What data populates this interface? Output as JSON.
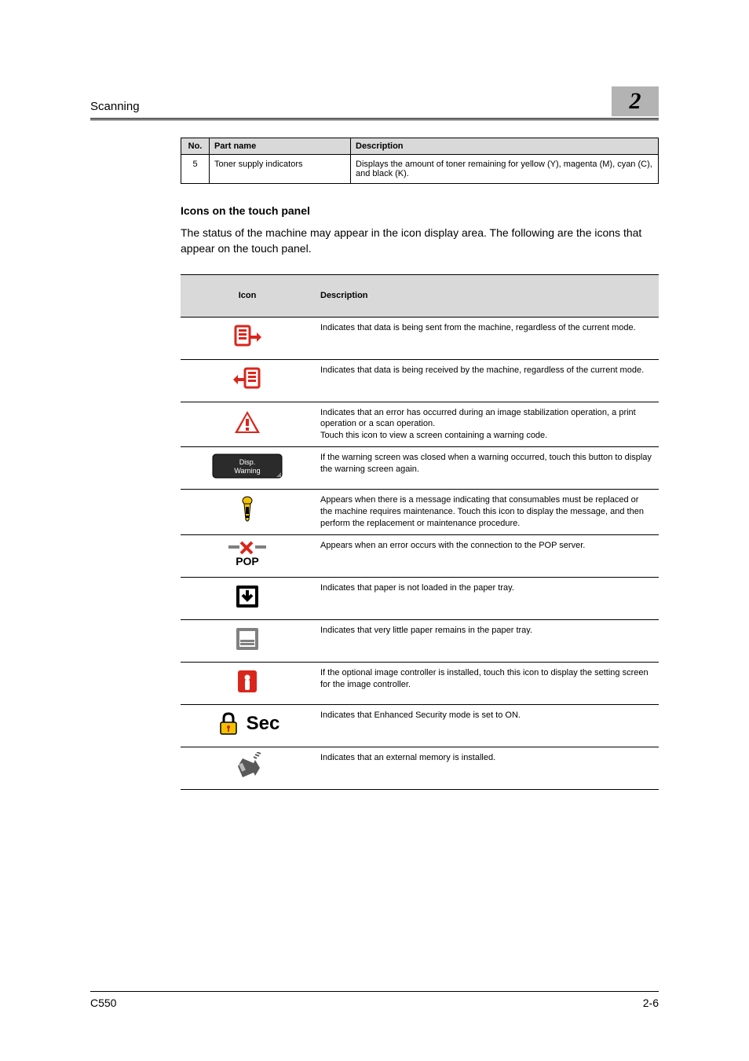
{
  "header": {
    "title": "Scanning",
    "chapter_number": "2"
  },
  "part_table": {
    "headers": {
      "no": "No.",
      "name": "Part name",
      "desc": "Description"
    },
    "rows": [
      {
        "no": "5",
        "name": "Toner supply indicators",
        "desc": "Displays the amount of toner remaining for yellow (Y), magenta (M), cyan (C), and black (K)."
      }
    ]
  },
  "section": {
    "heading": "Icons on the touch panel",
    "body": "The status of the machine may appear in the icon display area. The following are the icons that appear on the touch panel."
  },
  "icon_table": {
    "headers": {
      "icon": "Icon",
      "desc": "Description"
    },
    "rows": [
      {
        "icon": "send-icon",
        "desc": "Indicates that data is being sent from the machine, regardless of the current mode."
      },
      {
        "icon": "receive-icon",
        "desc": "Indicates that data is being received by the machine, regardless of the current mode."
      },
      {
        "icon": "error-icon",
        "desc": "Indicates that an error has occurred during an image stabilization operation, a print operation or a scan operation.\nTouch this icon to view a screen containing a warning code."
      },
      {
        "icon": "warning-button-icon",
        "desc": "If the warning screen was closed when a warning occurred, touch this button to display the warning screen again."
      },
      {
        "icon": "consumable-icon",
        "desc": "Appears when there is a message indicating that consumables must be replaced or the machine requires maintenance. Touch this icon to display the message, and then perform the replacement or maintenance procedure."
      },
      {
        "icon": "pop-error-icon",
        "desc": "Appears when an error occurs with the connection to the POP server."
      },
      {
        "icon": "no-paper-icon",
        "desc": "Indicates that paper is not loaded in the paper tray."
      },
      {
        "icon": "low-paper-icon",
        "desc": "Indicates that very little paper remains in the paper tray."
      },
      {
        "icon": "image-controller-icon",
        "desc": "If the optional image controller is installed, touch this icon to display the setting screen for the image controller."
      },
      {
        "icon": "security-icon",
        "label": "Sec",
        "desc": "Indicates that Enhanced Security mode is set to ON."
      },
      {
        "icon": "external-memory-icon",
        "desc": "Indicates that an external memory is installed."
      }
    ]
  },
  "icons": {
    "warning_button_text_line1": "Disp.",
    "warning_button_text_line2": "Warning",
    "pop_label": "POP",
    "sec_label": "Sec"
  },
  "footer": {
    "model": "C550",
    "page": "2-6"
  },
  "colors": {
    "header_gray": "#b3b3b3",
    "table_header": "#d9d9d9",
    "border": "#000000",
    "icon_red": "#d9261c",
    "icon_yellow": "#f2c200",
    "icon_gray": "#808080",
    "icon_darkgray": "#595959",
    "icon_dark": "#1a1a1a"
  }
}
